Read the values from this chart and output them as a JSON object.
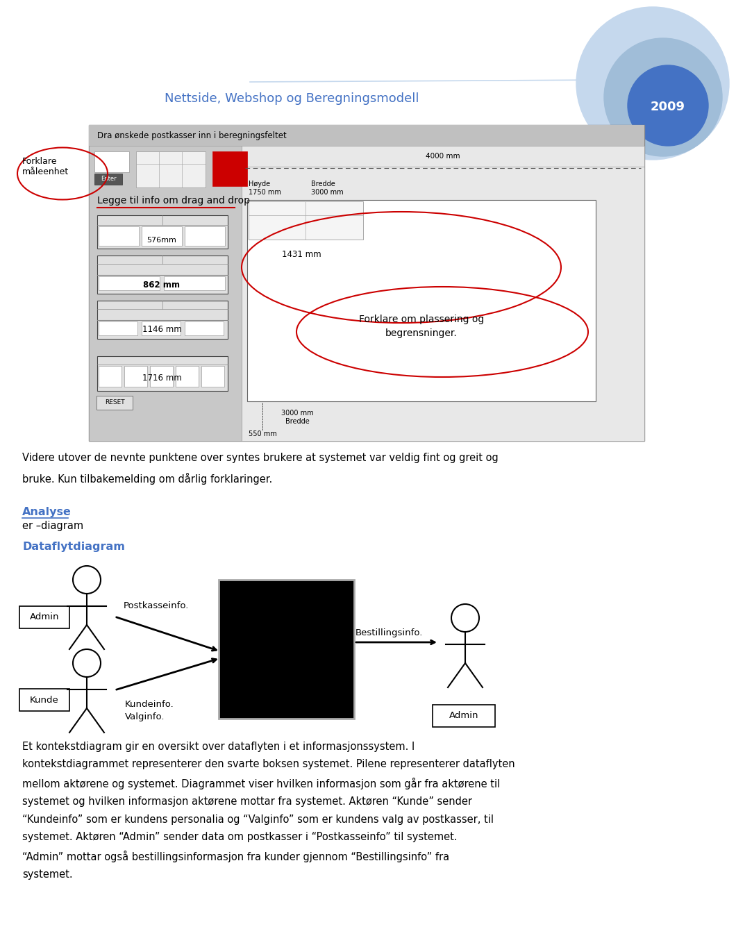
{
  "title": "Nettside, Webshop og Beregningsmodell",
  "year": "2009",
  "title_color": "#4472c4",
  "year_color": "#ffffff",
  "bg_color": "#ffffff",
  "paragraph1": "Videre utover de nevnte punktene over syntes brukere at systemet var veldig fint og greit og\nbruke. Kun tilbakemelding om dårlig forklaringer.",
  "section_analyse": "Analyse",
  "section_analyse_sub": "er –diagram",
  "section_dataflyt": "Dataflytdiagram",
  "section_color": "#4472c4",
  "actor_admin_left_label": "Admin",
  "actor_kunde_label": "Kunde",
  "actor_admin_right_label": "Admin",
  "arrow1_label": "Postkasseinfo.",
  "arrow2_label": "Bestillingsinfo.",
  "arrow3_label1": "Kundeinfo.",
  "arrow3_label2": "Valginfo.",
  "black_box_color": "#000000",
  "paragraph2": "Et kontekstdiagram gir en oversikt over dataflyten i et informasjonssystem. I\nkontekstdiagrammet representerer den svarte boksen systemet. Pilene representerer dataflyten\nmellom aktørene og systemet. Diagrammet viser hvilken informasjon som går fra aktørene til\nsystemet og hvilken informasjon aktørene mottar fra systemet. Aktøren “Kunde” sender\n“Kundeinfo” som er kundens personalia og “Valginfo” som er kundens valg av postkasser, til\nsystemet. Aktøren “Admin” sender data om postkasser i “Postkasseinfo” til systemet.\n“Admin” mottar også bestillingsinformasjon fra kunder gjennom “Bestillingsinfo” fra\nsystemet."
}
